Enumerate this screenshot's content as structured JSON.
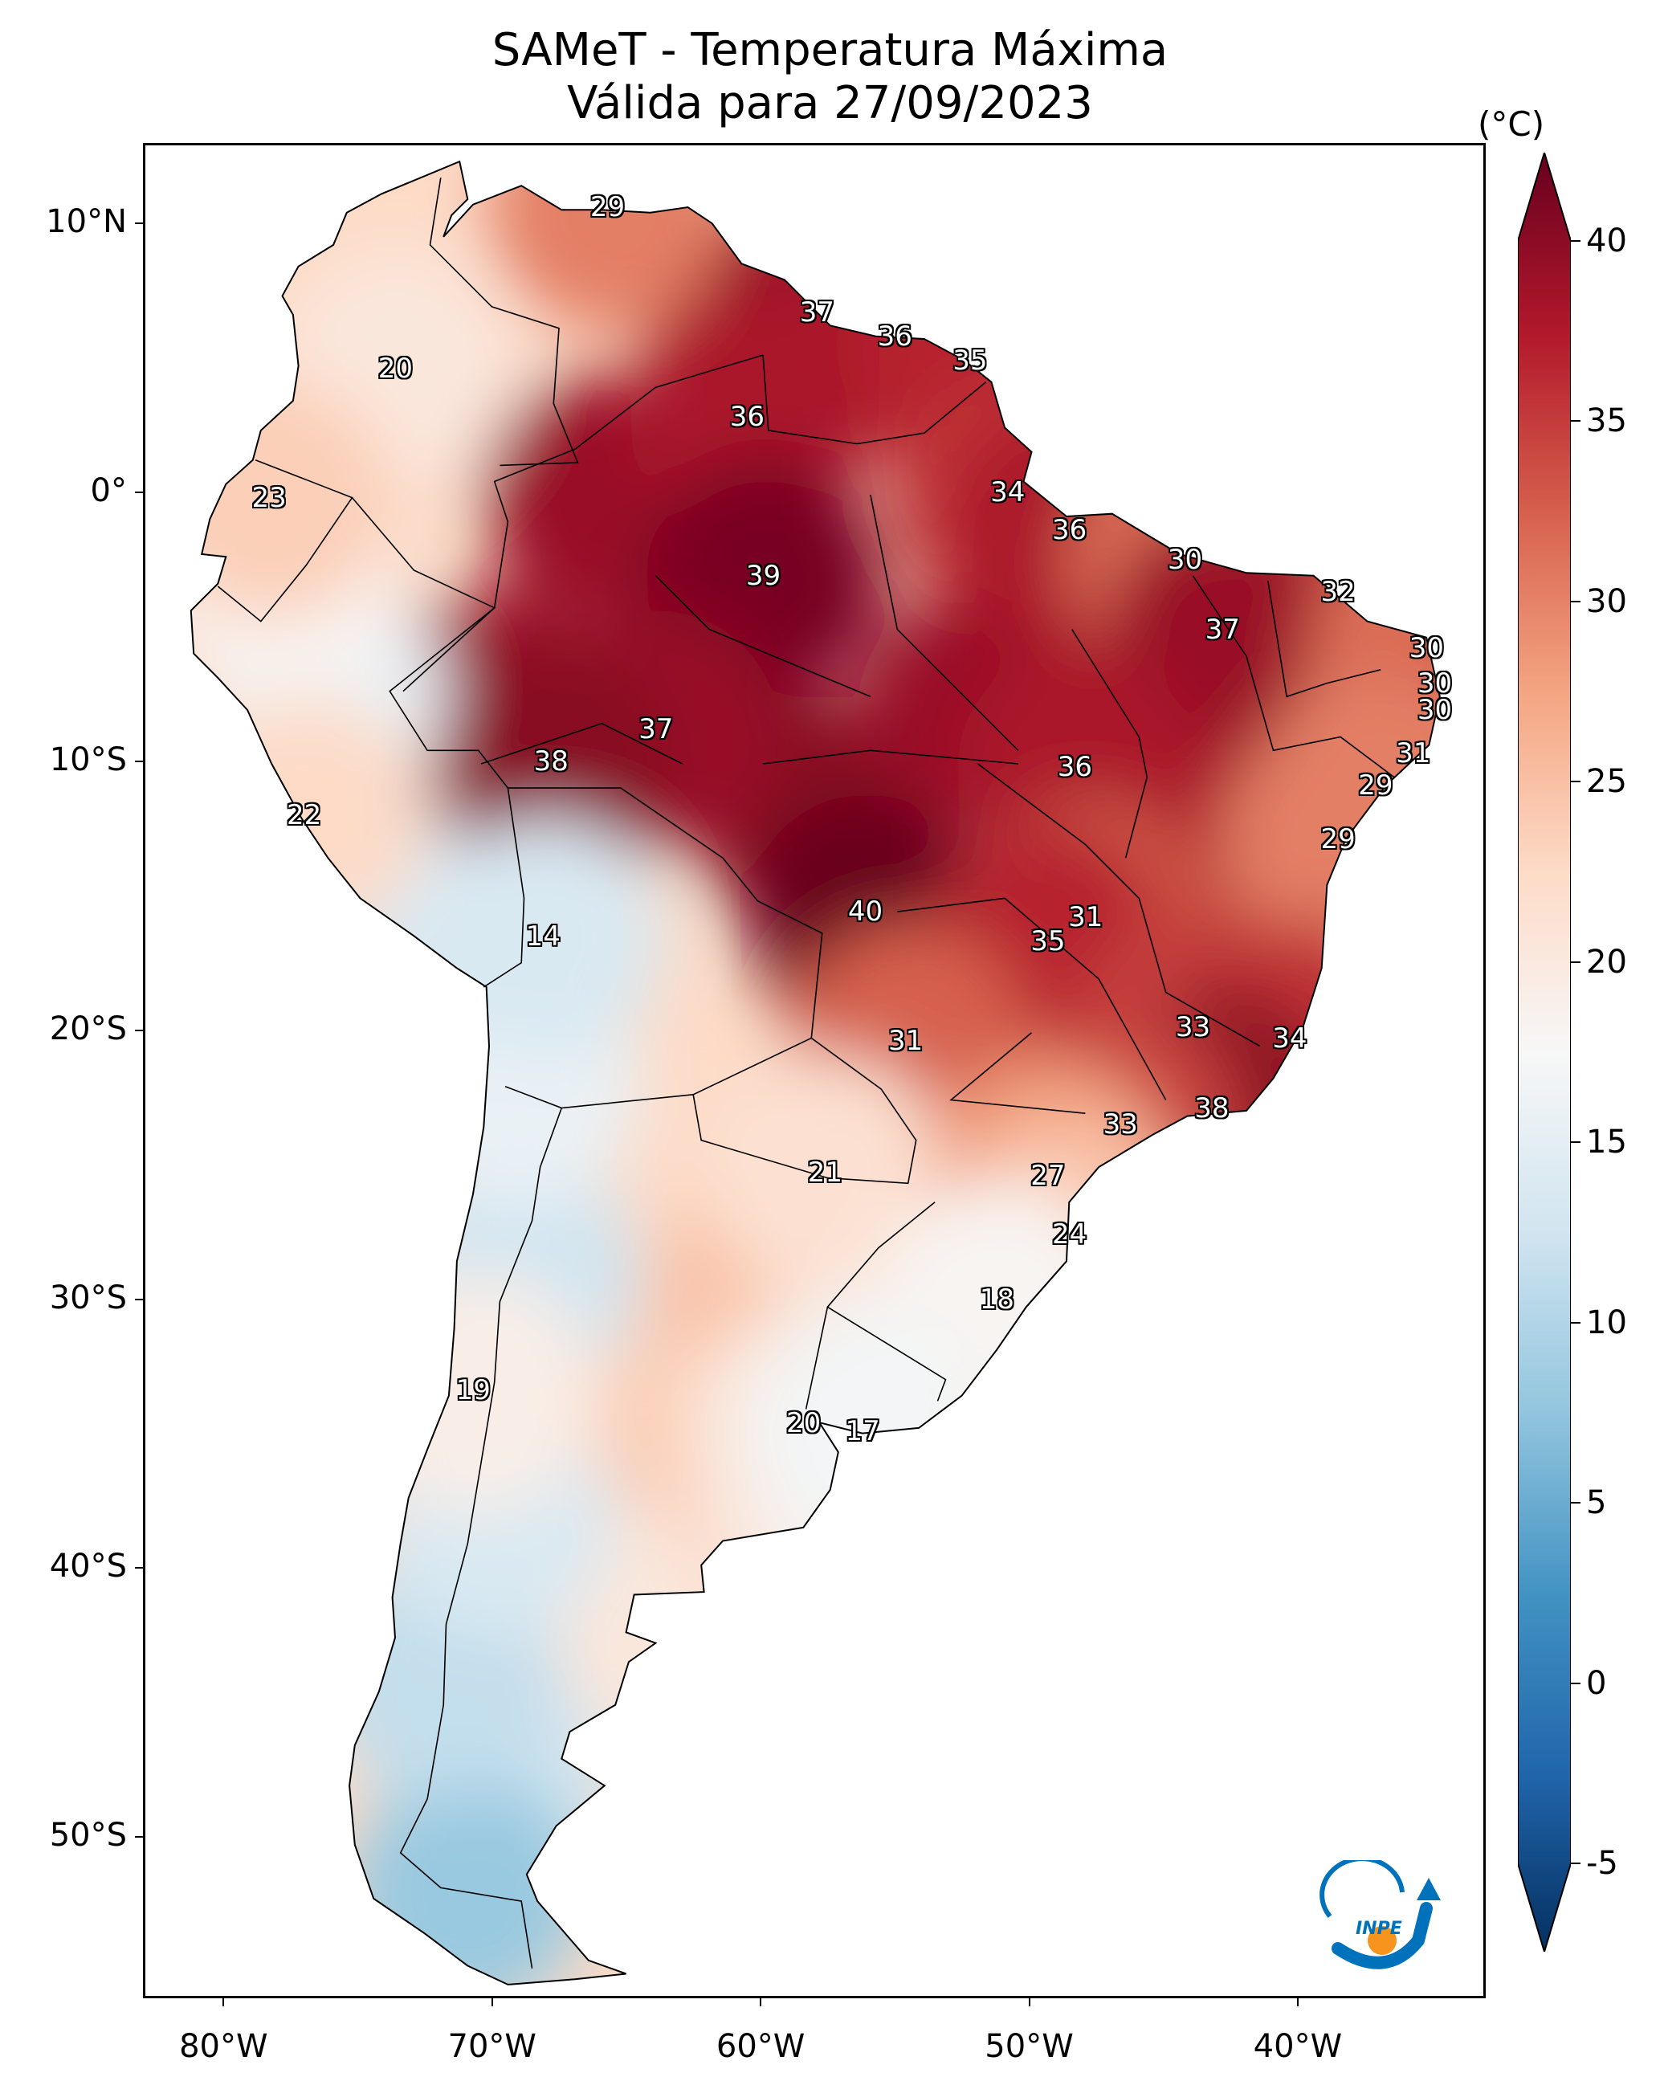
{
  "title": {
    "line1": "SAMeT - Temperatura Máxima",
    "line2": "Válida para 27/09/2023"
  },
  "map": {
    "lon_range": [
      -83,
      -33
    ],
    "lat_range": [
      -56,
      13
    ],
    "lat_ticks": [
      {
        "value": 10,
        "label": "10°N"
      },
      {
        "value": 0,
        "label": "0°"
      },
      {
        "value": -10,
        "label": "10°S"
      },
      {
        "value": -20,
        "label": "20°S"
      },
      {
        "value": -30,
        "label": "30°S"
      },
      {
        "value": -40,
        "label": "40°S"
      },
      {
        "value": -50,
        "label": "50°S"
      }
    ],
    "lon_ticks": [
      {
        "value": -80,
        "label": "80°W"
      },
      {
        "value": -70,
        "label": "70°W"
      },
      {
        "value": -60,
        "label": "60°W"
      },
      {
        "value": -50,
        "label": "50°W"
      },
      {
        "value": -40,
        "label": "40°W"
      }
    ],
    "city_values": [
      {
        "lon": -65.7,
        "lat": 10.6,
        "label": "29"
      },
      {
        "lon": -57.9,
        "lat": 6.7,
        "label": "37"
      },
      {
        "lon": -55.0,
        "lat": 5.8,
        "label": "36"
      },
      {
        "lon": -52.2,
        "lat": 4.9,
        "label": "35"
      },
      {
        "lon": -73.6,
        "lat": 4.6,
        "label": "20"
      },
      {
        "lon": -60.5,
        "lat": 2.8,
        "label": "36"
      },
      {
        "lon": -78.3,
        "lat": -0.2,
        "label": "23"
      },
      {
        "lon": -50.8,
        "lat": 0.0,
        "label": "34"
      },
      {
        "lon": -48.5,
        "lat": -1.4,
        "label": "36"
      },
      {
        "lon": -44.2,
        "lat": -2.5,
        "label": "30"
      },
      {
        "lon": -59.9,
        "lat": -3.1,
        "label": "39"
      },
      {
        "lon": -38.5,
        "lat": -3.7,
        "label": "32"
      },
      {
        "lon": -42.8,
        "lat": -5.1,
        "label": "37"
      },
      {
        "lon": -35.2,
        "lat": -5.8,
        "label": "30"
      },
      {
        "lon": -34.9,
        "lat": -7.1,
        "label": "30"
      },
      {
        "lon": -34.9,
        "lat": -8.1,
        "label": "30"
      },
      {
        "lon": -63.9,
        "lat": -8.8,
        "label": "37"
      },
      {
        "lon": -35.7,
        "lat": -9.7,
        "label": "31"
      },
      {
        "lon": -67.8,
        "lat": -10.0,
        "label": "38"
      },
      {
        "lon": -48.3,
        "lat": -10.2,
        "label": "36"
      },
      {
        "lon": -37.1,
        "lat": -10.9,
        "label": "29"
      },
      {
        "lon": -77.0,
        "lat": -12.0,
        "label": "22"
      },
      {
        "lon": -38.5,
        "lat": -12.9,
        "label": "29"
      },
      {
        "lon": -56.1,
        "lat": -15.6,
        "label": "40"
      },
      {
        "lon": -47.9,
        "lat": -15.8,
        "label": "31"
      },
      {
        "lon": -68.1,
        "lat": -16.5,
        "label": "14"
      },
      {
        "lon": -49.3,
        "lat": -16.7,
        "label": "35"
      },
      {
        "lon": -43.9,
        "lat": -19.9,
        "label": "33"
      },
      {
        "lon": -40.3,
        "lat": -20.3,
        "label": "34"
      },
      {
        "lon": -54.6,
        "lat": -20.4,
        "label": "31"
      },
      {
        "lon": -43.2,
        "lat": -22.9,
        "label": "38"
      },
      {
        "lon": -46.6,
        "lat": -23.5,
        "label": "33"
      },
      {
        "lon": -57.6,
        "lat": -25.3,
        "label": "21"
      },
      {
        "lon": -49.3,
        "lat": -25.4,
        "label": "27"
      },
      {
        "lon": -48.5,
        "lat": -27.6,
        "label": "24"
      },
      {
        "lon": -51.2,
        "lat": -30.0,
        "label": "18"
      },
      {
        "lon": -70.7,
        "lat": -33.4,
        "label": "19"
      },
      {
        "lon": -58.4,
        "lat": -34.6,
        "label": "20"
      },
      {
        "lon": -56.2,
        "lat": -34.9,
        "label": "17"
      }
    ]
  },
  "colorbar": {
    "unit": "(°C)",
    "min": -5,
    "max": 40,
    "ticks": [
      {
        "value": 40,
        "label": "40"
      },
      {
        "value": 35,
        "label": "35"
      },
      {
        "value": 30,
        "label": "30"
      },
      {
        "value": 25,
        "label": "25"
      },
      {
        "value": 20,
        "label": "20"
      },
      {
        "value": 15,
        "label": "15"
      },
      {
        "value": 10,
        "label": "10"
      },
      {
        "value": 5,
        "label": "5"
      },
      {
        "value": 0,
        "label": "0"
      },
      {
        "value": -5,
        "label": "-5"
      }
    ],
    "colors": [
      "#053061",
      "#2166ac",
      "#4393c3",
      "#92c5de",
      "#d1e5f0",
      "#f7f7f7",
      "#fddbc7",
      "#f4a582",
      "#d6604d",
      "#b2182b",
      "#67001f"
    ]
  },
  "logo": {
    "text": "INPE",
    "colors": [
      "#0072bc",
      "#f7941d"
    ]
  }
}
